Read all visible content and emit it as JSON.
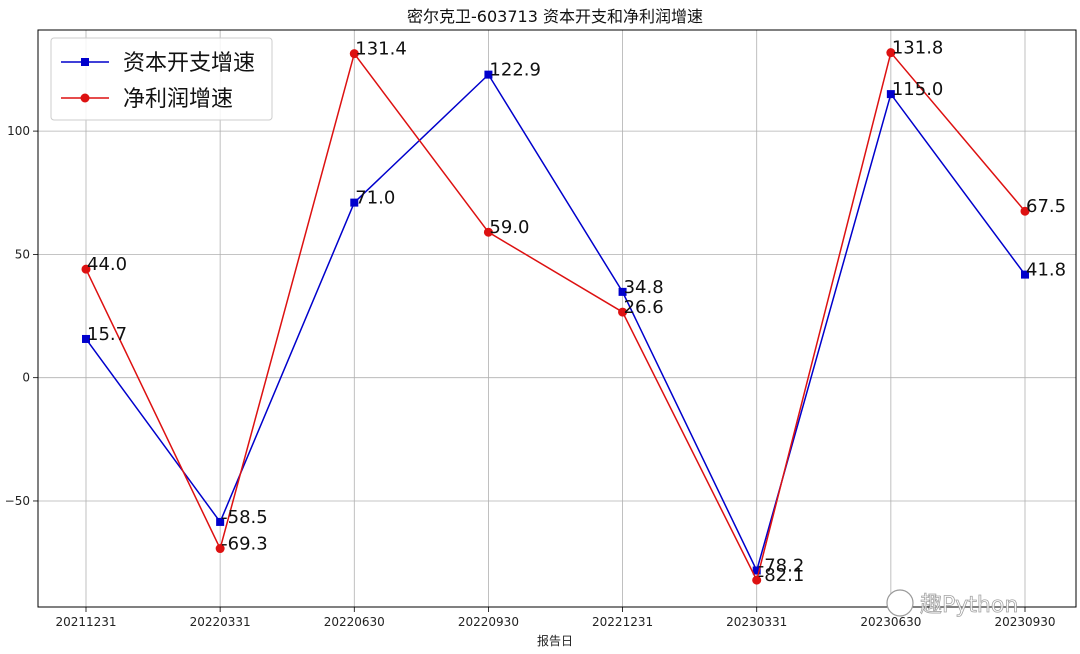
{
  "chart_data": {
    "type": "line",
    "title": "密尔克卫-603713 资本开支和净利润增速",
    "xlabel": "报告日",
    "ylabel": "",
    "categories": [
      "20211231",
      "20220331",
      "20220630",
      "20220930",
      "20221231",
      "20230331",
      "20230630",
      "20230930"
    ],
    "ylim": [
      -93,
      141
    ],
    "yticks": [
      -50,
      0,
      50,
      100
    ],
    "grid": true,
    "legend_position": "top-left",
    "series": [
      {
        "name": "资本开支增速",
        "color": "#0000cc",
        "marker": "square",
        "values": [
          15.7,
          -58.5,
          71.0,
          122.9,
          34.8,
          -78.2,
          115.0,
          41.8
        ],
        "labels": [
          "15.7",
          "-58.5",
          "71.0",
          "122.9",
          "34.8",
          "-78.2",
          "115.0",
          "41.8"
        ]
      },
      {
        "name": "净利润增速",
        "color": "#dd1111",
        "marker": "circle",
        "values": [
          44.0,
          -69.3,
          131.4,
          59.0,
          26.6,
          -82.1,
          131.8,
          67.5
        ],
        "labels": [
          "44.0",
          "-69.3",
          "131.4",
          "59.0",
          "26.6",
          "-82.1",
          "131.8",
          "67.5"
        ]
      }
    ]
  },
  "watermark": {
    "text": "趣Python"
  }
}
